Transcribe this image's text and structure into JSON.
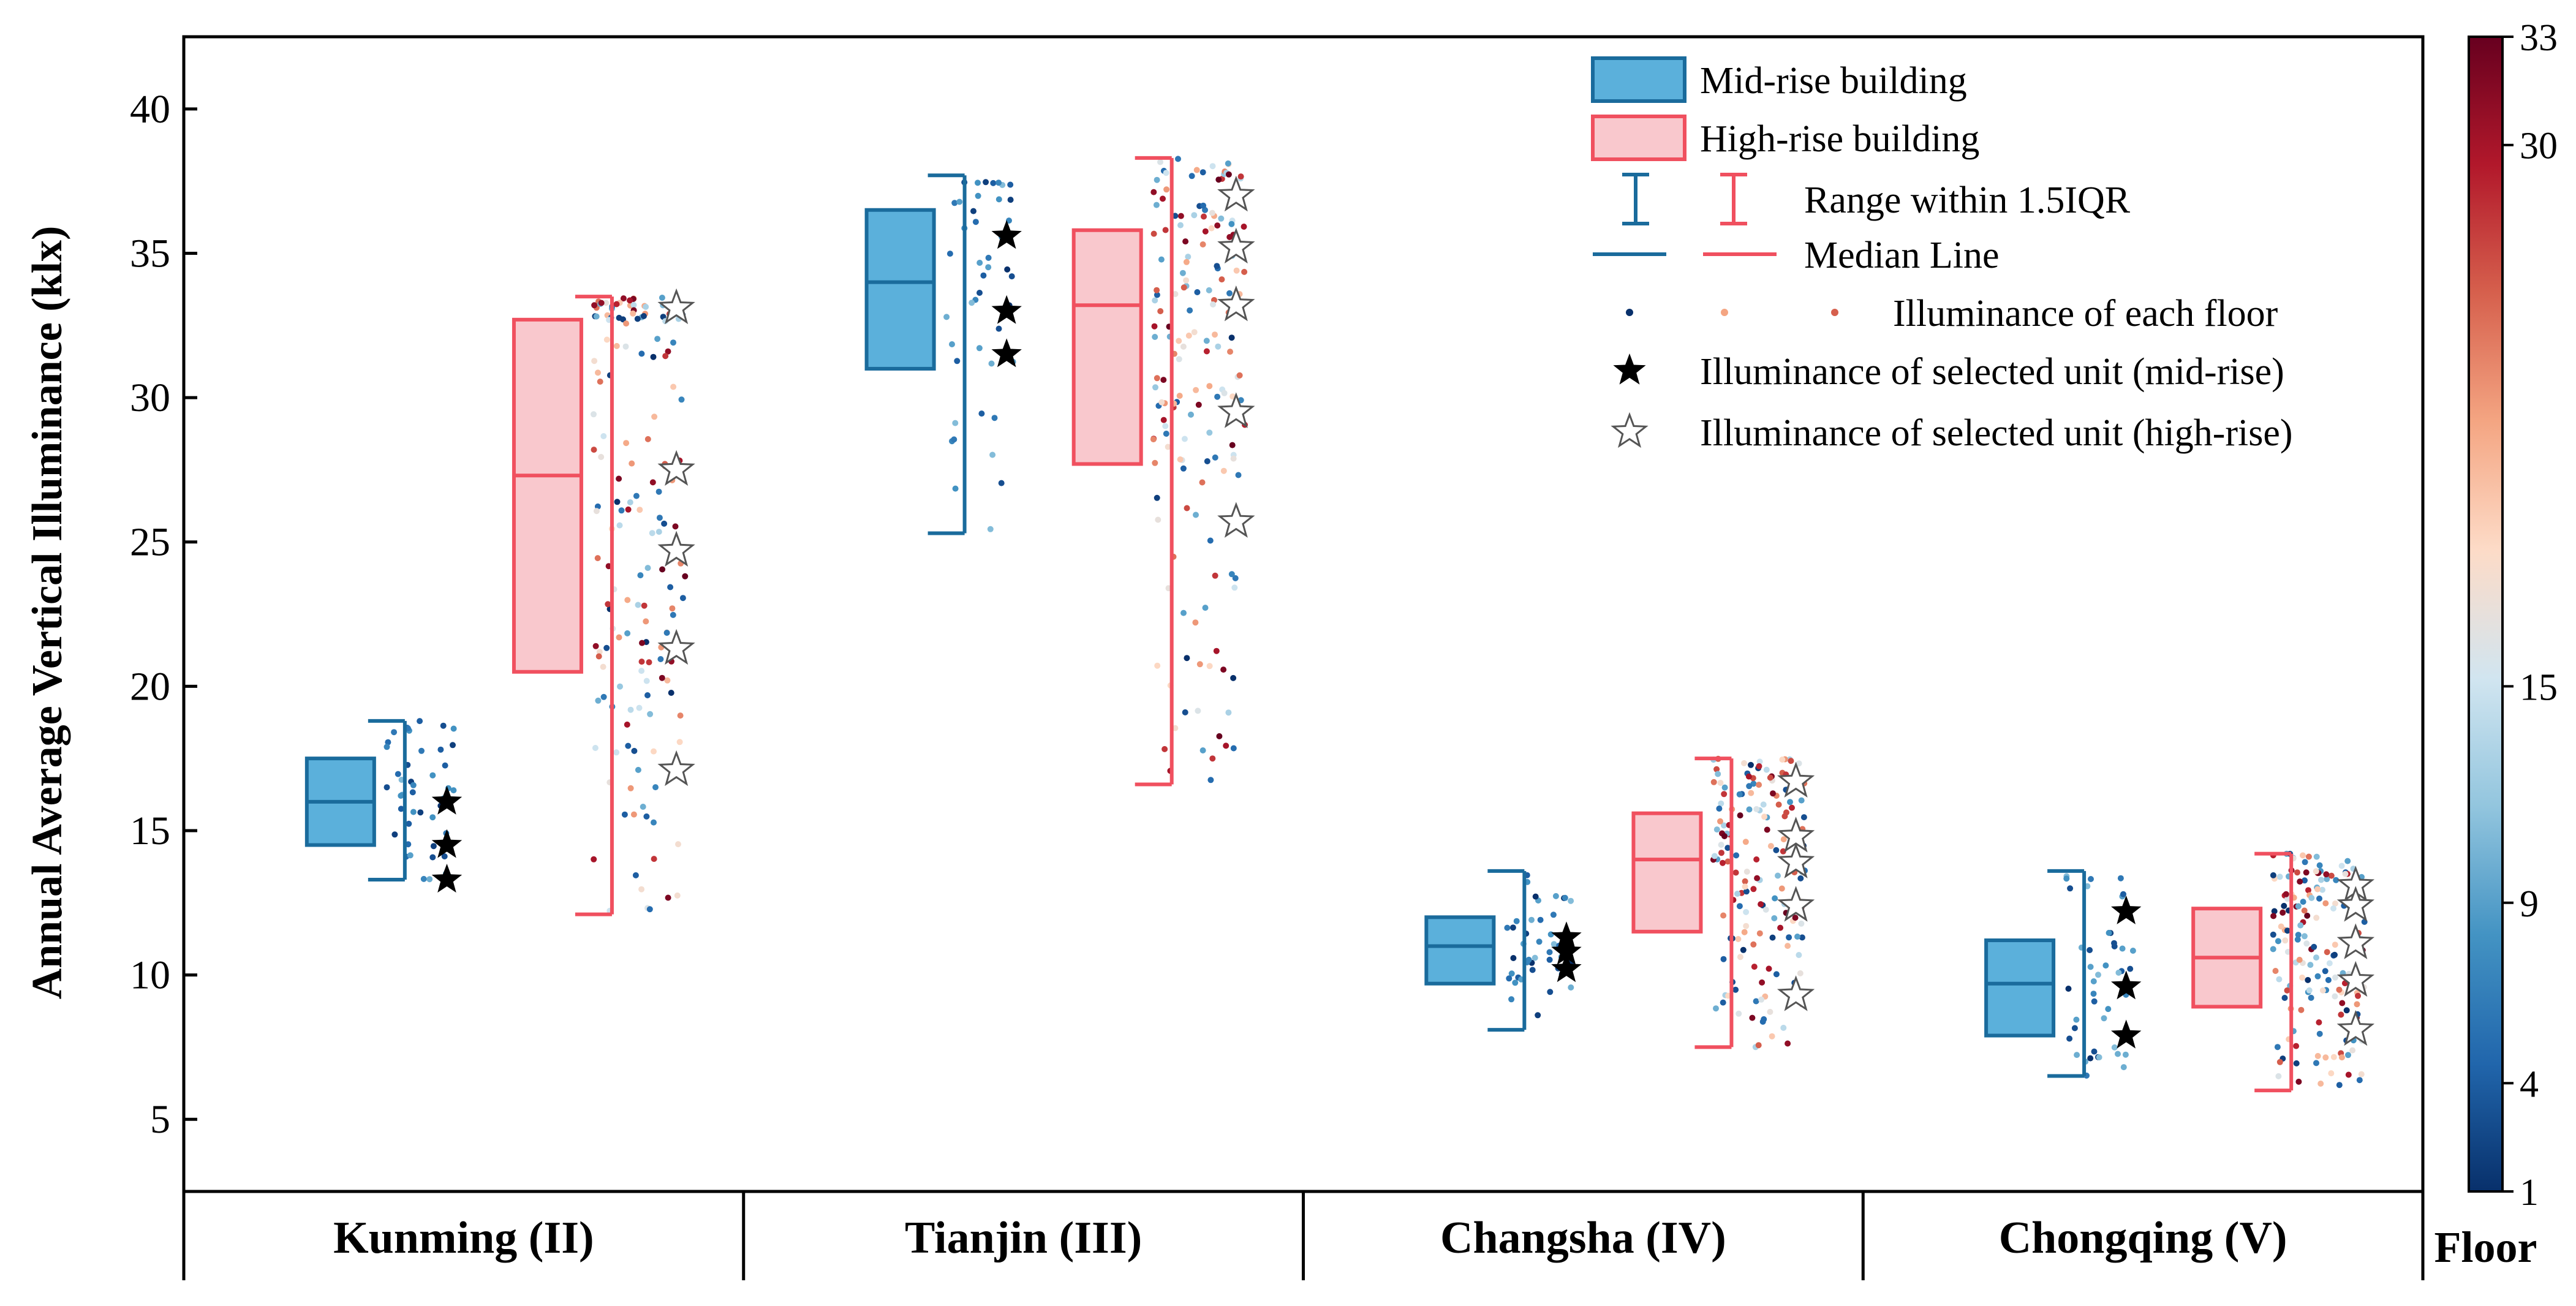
{
  "chart_data": {
    "type": "box",
    "title": "",
    "ylabel": "Annual Average Vertical Illuminance (klx)",
    "ylim": [
      2.5,
      42.5
    ],
    "yticks": [
      5,
      10,
      15,
      20,
      25,
      30,
      35,
      40
    ],
    "categories": [
      "Kunming (II)",
      "Tianjin (III)",
      "Changsha (IV)",
      "Chongqing (V)"
    ],
    "series": [
      {
        "name": "Mid-rise building",
        "color": "#5bb0db",
        "edge": "#1a6b9c",
        "floors": 11,
        "boxes": [
          {
            "min": 13.3,
            "q1": 14.5,
            "median": 16.0,
            "q3": 17.5,
            "max": 18.8
          },
          {
            "min": 25.3,
            "q1": 31.0,
            "median": 34.0,
            "q3": 36.5,
            "max": 37.7
          },
          {
            "min": 8.1,
            "q1": 9.7,
            "median": 11.0,
            "q3": 12.0,
            "max": 13.6
          },
          {
            "min": 6.5,
            "q1": 7.9,
            "median": 9.7,
            "q3": 11.2,
            "max": 13.6
          }
        ],
        "selected_units": [
          [
            16.0,
            14.5,
            13.3
          ],
          [
            35.6,
            33.0,
            31.5
          ],
          [
            11.3,
            10.8,
            10.2
          ],
          [
            12.2,
            9.6,
            7.9
          ]
        ]
      },
      {
        "name": "High-rise building",
        "color": "#f9c8cd",
        "edge": "#f0505f",
        "floors": 33,
        "boxes": [
          {
            "min": 12.1,
            "q1": 20.5,
            "median": 27.3,
            "q3": 32.7,
            "max": 33.5
          },
          {
            "min": 16.6,
            "q1": 27.7,
            "median": 33.2,
            "q3": 35.8,
            "max": 38.3
          },
          {
            "min": 7.5,
            "q1": 11.5,
            "median": 14.0,
            "q3": 15.6,
            "max": 17.5
          },
          {
            "min": 6.0,
            "q1": 8.9,
            "median": 10.6,
            "q3": 12.3,
            "max": 14.2
          }
        ],
        "selected_units": [
          [
            33.1,
            27.5,
            24.7,
            21.3,
            17.1
          ],
          [
            37.0,
            35.2,
            33.2,
            29.5,
            25.7
          ],
          [
            16.7,
            14.8,
            13.9,
            12.4,
            9.3
          ],
          [
            13.1,
            12.4,
            11.1,
            9.8,
            8.1
          ]
        ]
      }
    ],
    "legend": {
      "position": "top-right",
      "items": [
        "Mid-rise building",
        "High-rise building",
        "Range within 1.5IQR",
        "Median Line",
        "Illuminance of each floor",
        "Illuminance of selected unit (mid-rise)",
        "Illuminance of selected unit (high-rise)"
      ]
    },
    "colorbar": {
      "title": "Floor",
      "range": [
        1,
        33
      ],
      "ticks": [
        1,
        4,
        9,
        15,
        30,
        33
      ],
      "colors": [
        "#08306b",
        "#2166ac",
        "#4393c3",
        "#92c5de",
        "#d1e5f0",
        "#fddbc7",
        "#f4a582",
        "#d6604d",
        "#b2182b",
        "#67001f"
      ]
    }
  }
}
